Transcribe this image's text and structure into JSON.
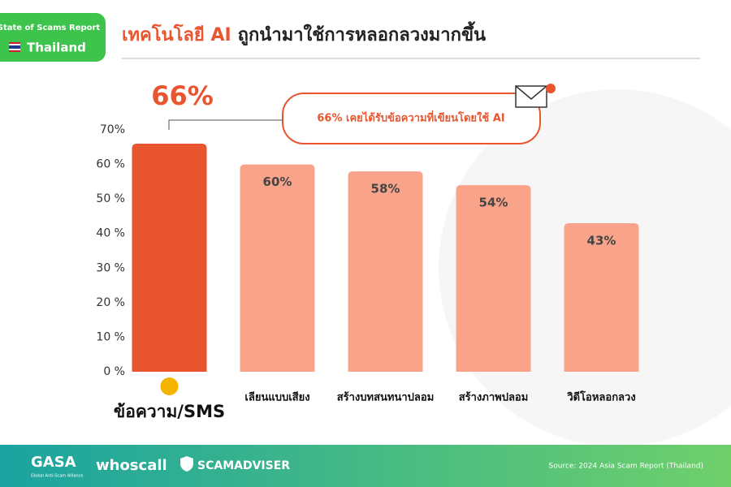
{
  "badge": {
    "report": "State of Scams Report",
    "country": "Thailand"
  },
  "chart_data": {
    "type": "bar",
    "title_highlight": "เทคโนโลยี AI",
    "title": "ถูกนำมาใช้การหลอกลวงมากขึ้น",
    "annotation": "66%  เคยได้รับข้อความที่เขียนโดยใช้ AI",
    "categories": [
      "ข้อความ/SMS",
      "เลียนแบบเสียง",
      "สร้างบทสนทนาปลอม",
      "สร้างภาพปลอม",
      "วิดีโอหลอกลวง"
    ],
    "values": [
      66,
      60,
      58,
      54,
      43
    ],
    "value_labels": [
      "66%",
      "60%",
      "58%",
      "54%",
      "43%"
    ],
    "colors": [
      "#e8552f",
      "#f9a48a",
      "#f9a48a",
      "#f9a48a",
      "#f9a48a"
    ],
    "ylim": [
      0,
      70
    ],
    "yticks": [
      {
        "value": 0,
        "label": "0 %"
      },
      {
        "value": 10,
        "label": "10 %"
      },
      {
        "value": 20,
        "label": "20 %"
      },
      {
        "value": 30,
        "label": "30 %"
      },
      {
        "value": 40,
        "label": "40 %"
      },
      {
        "value": 50,
        "label": "50 %"
      },
      {
        "value": 60,
        "label": "60 %"
      },
      {
        "value": 70,
        "label": "70%"
      }
    ],
    "grid": false
  },
  "footer": {
    "gasa": "GASA",
    "gasa_sub": "Global Anti-Scam Alliance",
    "whoscall": "whoscall",
    "scamadviser": "SCAMADVISER",
    "source": "Source: 2024 Asia Scam Report (Thailand)"
  }
}
